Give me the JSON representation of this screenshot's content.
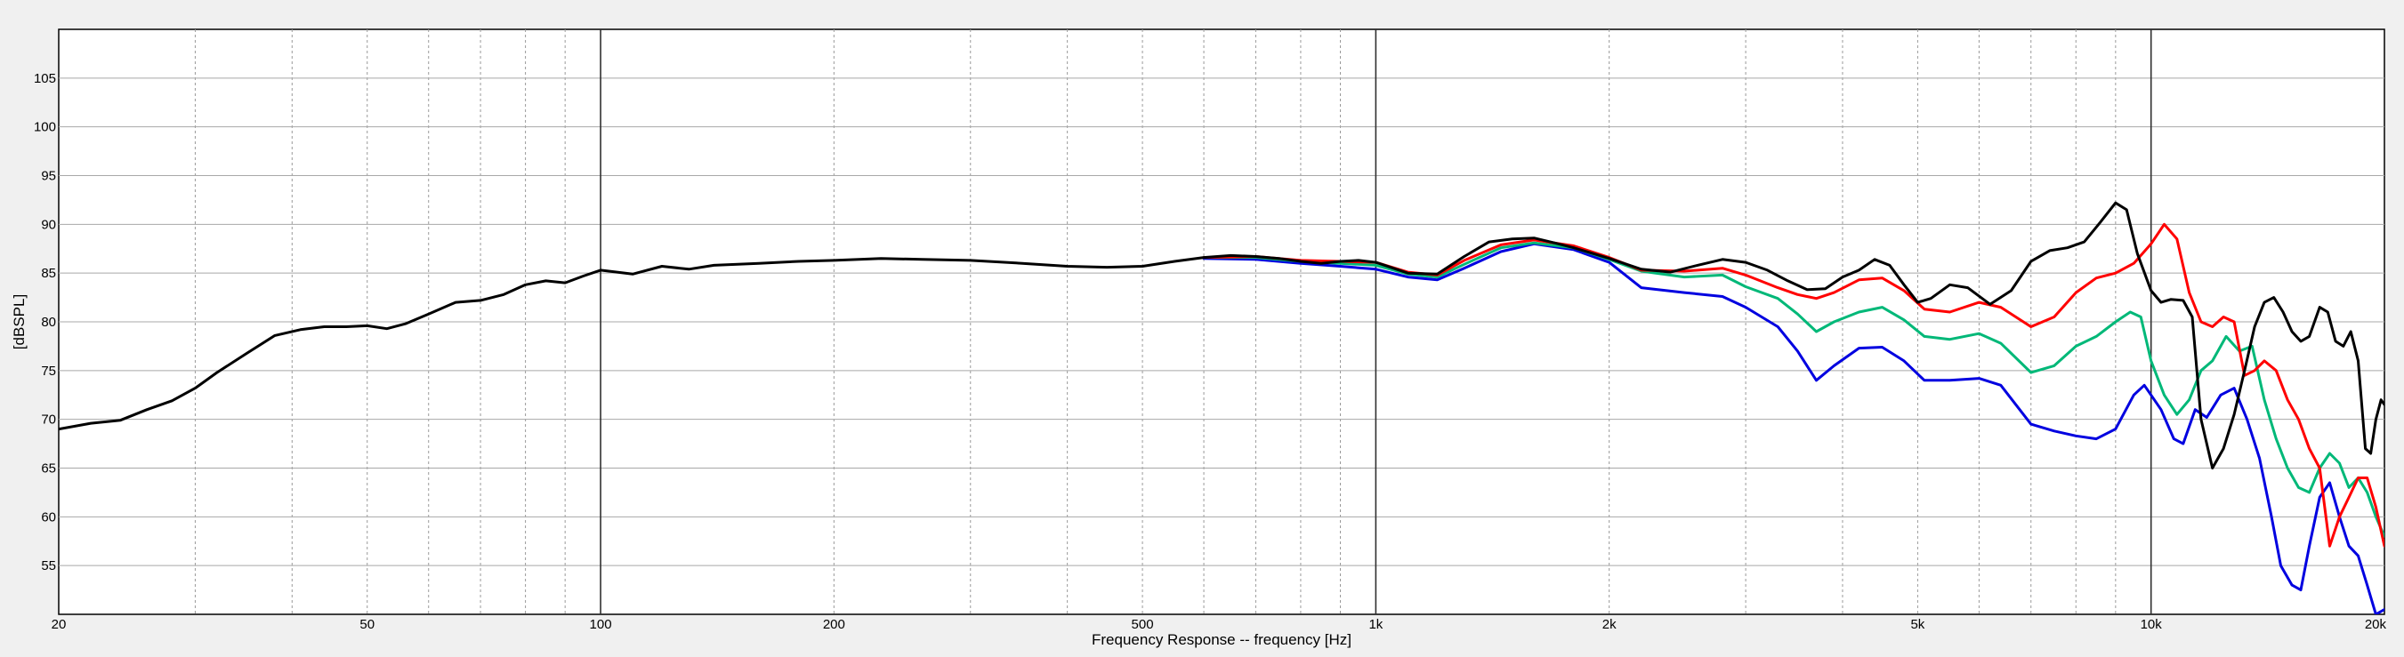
{
  "chart_data": {
    "type": "line",
    "title": "",
    "xlabel": "Frequency Response -- frequency [Hz]",
    "ylabel": "[dBSPL]",
    "x_scale": "log",
    "xlim": [
      20,
      20000
    ],
    "ylim": [
      50,
      110
    ],
    "x_ticks": [
      {
        "value": 20,
        "label": "20"
      },
      {
        "value": 50,
        "label": "50"
      },
      {
        "value": 100,
        "label": "100"
      },
      {
        "value": 200,
        "label": "200"
      },
      {
        "value": 500,
        "label": "500"
      },
      {
        "value": 1000,
        "label": "1k"
      },
      {
        "value": 2000,
        "label": "2k"
      },
      {
        "value": 5000,
        "label": "5k"
      },
      {
        "value": 10000,
        "label": "10k"
      },
      {
        "value": 20000,
        "label": "20k"
      }
    ],
    "y_ticks": [
      55,
      60,
      65,
      70,
      75,
      80,
      85,
      90,
      95,
      100,
      105
    ],
    "grid": true,
    "series": [
      {
        "color": "#0000e0",
        "points": [
          [
            600,
            86.5
          ],
          [
            700,
            86.4
          ],
          [
            800,
            86.0
          ],
          [
            900,
            85.7
          ],
          [
            1000,
            85.4
          ],
          [
            1100,
            84.6
          ],
          [
            1200,
            84.3
          ],
          [
            1300,
            85.5
          ],
          [
            1450,
            87.2
          ],
          [
            1600,
            88.0
          ],
          [
            1800,
            87.4
          ],
          [
            2000,
            86.1
          ],
          [
            2200,
            83.5
          ],
          [
            2500,
            83.0
          ],
          [
            2800,
            82.6
          ],
          [
            3000,
            81.5
          ],
          [
            3300,
            79.5
          ],
          [
            3500,
            77.0
          ],
          [
            3700,
            74.0
          ],
          [
            3900,
            75.5
          ],
          [
            4200,
            77.3
          ],
          [
            4500,
            77.4
          ],
          [
            4800,
            76.0
          ],
          [
            5100,
            74.0
          ],
          [
            5500,
            74.0
          ],
          [
            6000,
            74.2
          ],
          [
            6400,
            73.5
          ],
          [
            7000,
            69.5
          ],
          [
            7500,
            68.8
          ],
          [
            8000,
            68.3
          ],
          [
            8500,
            68.0
          ],
          [
            9000,
            69.0
          ],
          [
            9500,
            72.5
          ],
          [
            9800,
            73.5
          ],
          [
            10300,
            71.0
          ],
          [
            10700,
            68.0
          ],
          [
            11000,
            67.5
          ],
          [
            11400,
            71.0
          ],
          [
            11800,
            70.2
          ],
          [
            12300,
            72.5
          ],
          [
            12800,
            73.2
          ],
          [
            13300,
            70.0
          ],
          [
            13800,
            66.0
          ],
          [
            14300,
            60.0
          ],
          [
            14700,
            55.0
          ],
          [
            15200,
            53.0
          ],
          [
            15600,
            52.5
          ],
          [
            16000,
            57.0
          ],
          [
            16500,
            62.0
          ],
          [
            17000,
            63.5
          ],
          [
            17500,
            60.0
          ],
          [
            18000,
            57.0
          ],
          [
            18500,
            56.0
          ],
          [
            19000,
            53.0
          ],
          [
            19500,
            50.0
          ],
          [
            20000,
            50.5
          ]
        ]
      },
      {
        "color": "#00b878",
        "points": [
          [
            600,
            86.6
          ],
          [
            700,
            86.6
          ],
          [
            800,
            86.2
          ],
          [
            900,
            86.0
          ],
          [
            1000,
            85.8
          ],
          [
            1100,
            84.9
          ],
          [
            1200,
            84.6
          ],
          [
            1300,
            85.9
          ],
          [
            1450,
            87.6
          ],
          [
            1600,
            88.1
          ],
          [
            1800,
            87.6
          ],
          [
            2000,
            86.4
          ],
          [
            2200,
            85.2
          ],
          [
            2500,
            84.6
          ],
          [
            2800,
            84.8
          ],
          [
            3000,
            83.6
          ],
          [
            3300,
            82.4
          ],
          [
            3500,
            80.8
          ],
          [
            3700,
            79.0
          ],
          [
            3900,
            80.0
          ],
          [
            4200,
            81.0
          ],
          [
            4500,
            81.5
          ],
          [
            4800,
            80.2
          ],
          [
            5100,
            78.5
          ],
          [
            5500,
            78.2
          ],
          [
            6000,
            78.8
          ],
          [
            6400,
            77.8
          ],
          [
            7000,
            74.8
          ],
          [
            7500,
            75.5
          ],
          [
            8000,
            77.5
          ],
          [
            8500,
            78.5
          ],
          [
            9000,
            80.0
          ],
          [
            9400,
            81.0
          ],
          [
            9700,
            80.5
          ],
          [
            10000,
            76.0
          ],
          [
            10400,
            72.5
          ],
          [
            10800,
            70.5
          ],
          [
            11200,
            72.0
          ],
          [
            11600,
            75.0
          ],
          [
            12000,
            76.0
          ],
          [
            12500,
            78.5
          ],
          [
            13000,
            77.0
          ],
          [
            13500,
            77.5
          ],
          [
            14000,
            72.0
          ],
          [
            14500,
            68.0
          ],
          [
            15000,
            65.0
          ],
          [
            15500,
            63.0
          ],
          [
            16000,
            62.5
          ],
          [
            16500,
            65.0
          ],
          [
            17000,
            66.5
          ],
          [
            17500,
            65.5
          ],
          [
            18000,
            63.0
          ],
          [
            18500,
            64.0
          ],
          [
            19000,
            62.5
          ],
          [
            19500,
            60.0
          ],
          [
            20000,
            58.0
          ]
        ]
      },
      {
        "color": "#ff0000",
        "points": [
          [
            600,
            86.6
          ],
          [
            700,
            86.7
          ],
          [
            800,
            86.3
          ],
          [
            900,
            86.2
          ],
          [
            1000,
            86.1
          ],
          [
            1100,
            85.1
          ],
          [
            1200,
            84.8
          ],
          [
            1300,
            86.3
          ],
          [
            1450,
            87.9
          ],
          [
            1600,
            88.4
          ],
          [
            1800,
            87.8
          ],
          [
            2000,
            86.6
          ],
          [
            2200,
            85.3
          ],
          [
            2500,
            85.2
          ],
          [
            2800,
            85.5
          ],
          [
            3000,
            84.8
          ],
          [
            3300,
            83.5
          ],
          [
            3500,
            82.8
          ],
          [
            3700,
            82.4
          ],
          [
            3900,
            83.0
          ],
          [
            4200,
            84.3
          ],
          [
            4500,
            84.5
          ],
          [
            4800,
            83.2
          ],
          [
            5100,
            81.3
          ],
          [
            5500,
            81.0
          ],
          [
            6000,
            82.0
          ],
          [
            6400,
            81.5
          ],
          [
            7000,
            79.5
          ],
          [
            7500,
            80.5
          ],
          [
            8000,
            83.0
          ],
          [
            8500,
            84.5
          ],
          [
            9000,
            85.0
          ],
          [
            9500,
            86.0
          ],
          [
            10000,
            88.0
          ],
          [
            10400,
            90.0
          ],
          [
            10800,
            88.5
          ],
          [
            11200,
            83.0
          ],
          [
            11600,
            80.0
          ],
          [
            12000,
            79.5
          ],
          [
            12400,
            80.5
          ],
          [
            12800,
            80.0
          ],
          [
            13200,
            74.5
          ],
          [
            13600,
            75.0
          ],
          [
            14000,
            76.0
          ],
          [
            14500,
            75.0
          ],
          [
            15000,
            72.0
          ],
          [
            15500,
            70.0
          ],
          [
            16000,
            67.0
          ],
          [
            16500,
            65.0
          ],
          [
            17000,
            57.0
          ],
          [
            17500,
            60.0
          ],
          [
            18000,
            62.0
          ],
          [
            18500,
            64.0
          ],
          [
            19000,
            64.0
          ],
          [
            19500,
            61.0
          ],
          [
            20000,
            57.0
          ]
        ]
      },
      {
        "color": "#000000",
        "points": [
          [
            20,
            69
          ],
          [
            22,
            69.6
          ],
          [
            24,
            69.9
          ],
          [
            26,
            71
          ],
          [
            28,
            71.9
          ],
          [
            30,
            73.2
          ],
          [
            32,
            74.8
          ],
          [
            35,
            76.8
          ],
          [
            38,
            78.6
          ],
          [
            41,
            79.2
          ],
          [
            44,
            79.5
          ],
          [
            47,
            79.5
          ],
          [
            50,
            79.6
          ],
          [
            53,
            79.3
          ],
          [
            56,
            79.8
          ],
          [
            60,
            80.8
          ],
          [
            65,
            82
          ],
          [
            70,
            82.2
          ],
          [
            75,
            82.8
          ],
          [
            80,
            83.8
          ],
          [
            85,
            84.2
          ],
          [
            90,
            84.0
          ],
          [
            95,
            84.7
          ],
          [
            100,
            85.3
          ],
          [
            110,
            84.9
          ],
          [
            120,
            85.7
          ],
          [
            130,
            85.4
          ],
          [
            140,
            85.8
          ],
          [
            160,
            86.0
          ],
          [
            180,
            86.2
          ],
          [
            200,
            86.3
          ],
          [
            230,
            86.5
          ],
          [
            260,
            86.4
          ],
          [
            300,
            86.3
          ],
          [
            350,
            86.0
          ],
          [
            400,
            85.7
          ],
          [
            450,
            85.6
          ],
          [
            500,
            85.7
          ],
          [
            550,
            86.2
          ],
          [
            600,
            86.6
          ],
          [
            650,
            86.8
          ],
          [
            700,
            86.7
          ],
          [
            750,
            86.5
          ],
          [
            800,
            86.2
          ],
          [
            850,
            86.0
          ],
          [
            900,
            86.2
          ],
          [
            950,
            86.3
          ],
          [
            1000,
            86.1
          ],
          [
            1100,
            85.0
          ],
          [
            1200,
            84.9
          ],
          [
            1300,
            86.7
          ],
          [
            1400,
            88.2
          ],
          [
            1500,
            88.5
          ],
          [
            1600,
            88.6
          ],
          [
            1700,
            88.1
          ],
          [
            1800,
            87.6
          ],
          [
            2000,
            86.5
          ],
          [
            2200,
            85.4
          ],
          [
            2400,
            85.1
          ],
          [
            2600,
            85.8
          ],
          [
            2800,
            86.4
          ],
          [
            3000,
            86.1
          ],
          [
            3200,
            85.3
          ],
          [
            3400,
            84.2
          ],
          [
            3600,
            83.3
          ],
          [
            3800,
            83.4
          ],
          [
            4000,
            84.6
          ],
          [
            4200,
            85.3
          ],
          [
            4400,
            86.4
          ],
          [
            4600,
            85.8
          ],
          [
            4800,
            83.8
          ],
          [
            5000,
            82.0
          ],
          [
            5200,
            82.4
          ],
          [
            5500,
            83.8
          ],
          [
            5800,
            83.5
          ],
          [
            6200,
            81.8
          ],
          [
            6600,
            83.2
          ],
          [
            7000,
            86.2
          ],
          [
            7400,
            87.3
          ],
          [
            7800,
            87.6
          ],
          [
            8200,
            88.2
          ],
          [
            8600,
            90.2
          ],
          [
            9000,
            92.2
          ],
          [
            9300,
            91.5
          ],
          [
            9600,
            87.0
          ],
          [
            10000,
            83.2
          ],
          [
            10300,
            82.0
          ],
          [
            10600,
            82.3
          ],
          [
            11000,
            82.2
          ],
          [
            11300,
            80.5
          ],
          [
            11600,
            70.0
          ],
          [
            12000,
            65.0
          ],
          [
            12400,
            67.0
          ],
          [
            12800,
            70.5
          ],
          [
            13200,
            75.0
          ],
          [
            13600,
            79.5
          ],
          [
            14000,
            82.0
          ],
          [
            14400,
            82.5
          ],
          [
            14800,
            81.0
          ],
          [
            15200,
            79.0
          ],
          [
            15600,
            78.0
          ],
          [
            16000,
            78.5
          ],
          [
            16500,
            81.5
          ],
          [
            16900,
            81.0
          ],
          [
            17300,
            78.0
          ],
          [
            17700,
            77.5
          ],
          [
            18100,
            79.0
          ],
          [
            18500,
            76.0
          ],
          [
            18900,
            67.0
          ],
          [
            19200,
            66.5
          ],
          [
            19500,
            70.0
          ],
          [
            19800,
            72.0
          ],
          [
            20000,
            71.5
          ]
        ]
      }
    ]
  }
}
